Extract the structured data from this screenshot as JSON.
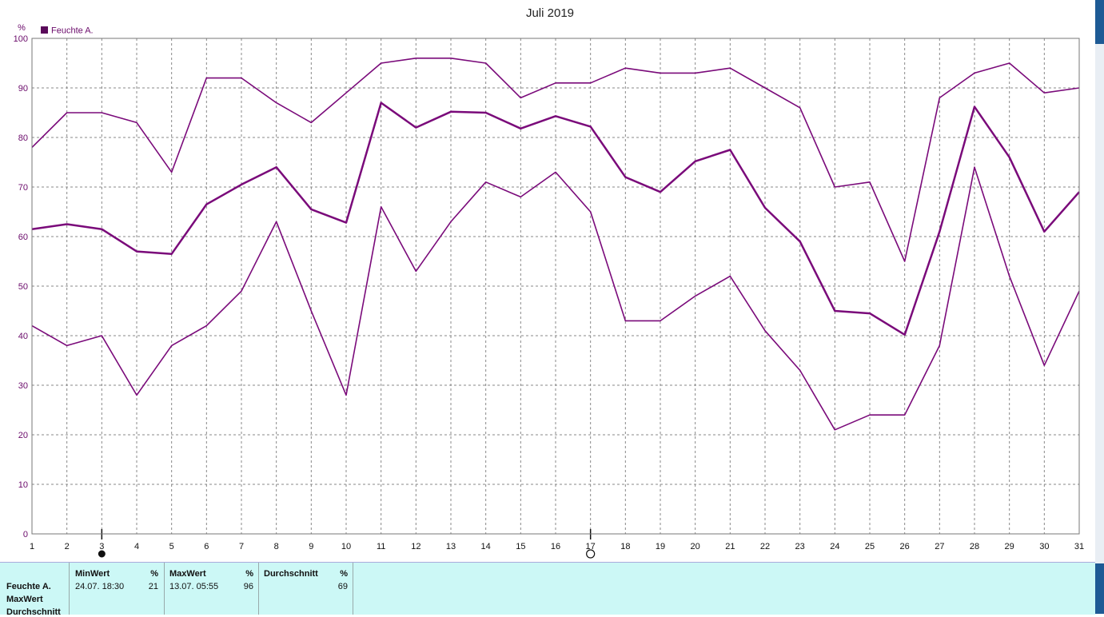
{
  "chart_data": {
    "type": "line",
    "title": "Juli 2019",
    "ylabel": "%",
    "ylim": [
      0,
      100
    ],
    "yticks": [
      "0",
      "10",
      "20",
      "30",
      "40",
      "50",
      "60",
      "70",
      "80",
      "90",
      "100"
    ],
    "x": [
      "1",
      "2",
      "3",
      "4",
      "5",
      "6",
      "7",
      "8",
      "9",
      "10",
      "11",
      "12",
      "13",
      "14",
      "15",
      "16",
      "17",
      "18",
      "19",
      "20",
      "21",
      "22",
      "23",
      "24",
      "25",
      "26",
      "27",
      "28",
      "29",
      "30",
      "31"
    ],
    "legend": "Feuchte A.",
    "color": "#7a0a7a",
    "grid": true,
    "series": [
      {
        "values": [
          78,
          85,
          85,
          83,
          73,
          92,
          92,
          87,
          83,
          89,
          95,
          96,
          96,
          95,
          88,
          91,
          91,
          94,
          93,
          93,
          94,
          90,
          86,
          70,
          71,
          55,
          88,
          93,
          95,
          89,
          90
        ]
      },
      {
        "values": [
          61.5,
          62.5,
          61.5,
          57,
          56.5,
          66.5,
          70.5,
          74,
          65.5,
          62.8,
          87,
          82,
          85.2,
          85,
          81.8,
          84.3,
          82.2,
          72,
          69,
          75.2,
          77.5,
          65.8,
          59,
          45,
          44.5,
          40.2,
          61,
          86.2,
          76,
          61,
          69
        ]
      },
      {
        "values": [
          42,
          38,
          40,
          28,
          38,
          42,
          49,
          63,
          45,
          28,
          66,
          53,
          63,
          71,
          68,
          73,
          65,
          43,
          43,
          48,
          52,
          41,
          33,
          21,
          24,
          24,
          38,
          74,
          52,
          34,
          49
        ]
      }
    ]
  },
  "markers": {
    "filled_day": "3",
    "empty_day": "17"
  },
  "stats": {
    "row_labels": [
      "Feuchte A.",
      "MaxWert",
      "Durchschnitt"
    ],
    "min_header": "MinWert",
    "min_unit": "%",
    "min_time": "24.07.  18:30",
    "min_value": "21",
    "max_header": "MaxWert",
    "max_unit": "%",
    "max_time": "13.07.  05:55",
    "max_value": "96",
    "avg_header": "Durchschnitt",
    "avg_unit": "%",
    "avg_value": "69"
  }
}
